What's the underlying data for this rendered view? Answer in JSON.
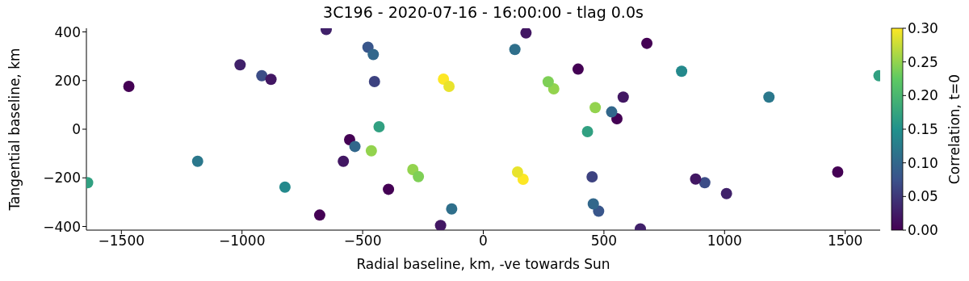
{
  "chart_data": {
    "type": "scatter",
    "title": "3C196 - 2020-07-16 - 16:00:00 - tlag 0.0s",
    "xlabel": "Radial baseline, km, -ve towards Sun",
    "ylabel": "Tangential baseline, km",
    "clabel": "Correlation, t=0",
    "x": [
      -1469,
      -1008,
      -918,
      -880,
      -651,
      -478,
      -456,
      -451,
      -165,
      -142,
      -432,
      -554,
      -532,
      -464,
      -580,
      -1184,
      -1640,
      -822,
      -678,
      -393,
      -292,
      -269,
      -131,
      -177,
      1469,
      1008,
      918,
      880,
      651,
      478,
      456,
      451,
      165,
      142,
      432,
      554,
      532,
      464,
      580,
      1184,
      1640,
      822,
      678,
      393,
      292,
      269,
      131,
      177
    ],
    "values": [
      176,
      265,
      220,
      205,
      410,
      337,
      307,
      196,
      206,
      176,
      10,
      -43,
      -71,
      -89,
      -132,
      -132,
      -220,
      -238,
      -353,
      -247,
      -166,
      -195,
      -328,
      -396,
      -176,
      -265,
      -220,
      -205,
      -410,
      -337,
      -307,
      -196,
      -206,
      -176,
      -10,
      43,
      71,
      89,
      132,
      132,
      220,
      238,
      353,
      247,
      166,
      195,
      328,
      396
    ],
    "cvalues": [
      0.0,
      0.03,
      0.07,
      0.02,
      0.03,
      0.08,
      0.1,
      0.06,
      0.3,
      0.29,
      0.17,
      0.0,
      0.1,
      0.25,
      0.02,
      0.12,
      0.17,
      0.14,
      0.0,
      0.0,
      0.25,
      0.24,
      0.11,
      0.02,
      0.0,
      0.03,
      0.07,
      0.02,
      0.03,
      0.08,
      0.1,
      0.06,
      0.3,
      0.29,
      0.17,
      0.0,
      0.1,
      0.25,
      0.02,
      0.12,
      0.17,
      0.14,
      0.0,
      0.0,
      0.25,
      0.24,
      0.11,
      0.02
    ],
    "clim": [
      0,
      0.3
    ],
    "cticks": [
      {
        "value": 0,
        "label": "0.00"
      },
      {
        "value": 0.05,
        "label": "0.05"
      },
      {
        "value": 0.1,
        "label": "0.10"
      },
      {
        "value": 0.15,
        "label": "0.15"
      },
      {
        "value": 0.2,
        "label": "0.20"
      },
      {
        "value": 0.25,
        "label": "0.25"
      },
      {
        "value": 0.3,
        "label": "0.30"
      }
    ],
    "xlim": [
      -1645,
      1645
    ],
    "xticks": [
      -1500,
      -1000,
      -500,
      0,
      500,
      1000,
      1500
    ],
    "ylim": [
      -415,
      415
    ],
    "yticks": [
      -400,
      -200,
      0,
      200,
      400
    ],
    "marker": "circle",
    "grid": false
  }
}
